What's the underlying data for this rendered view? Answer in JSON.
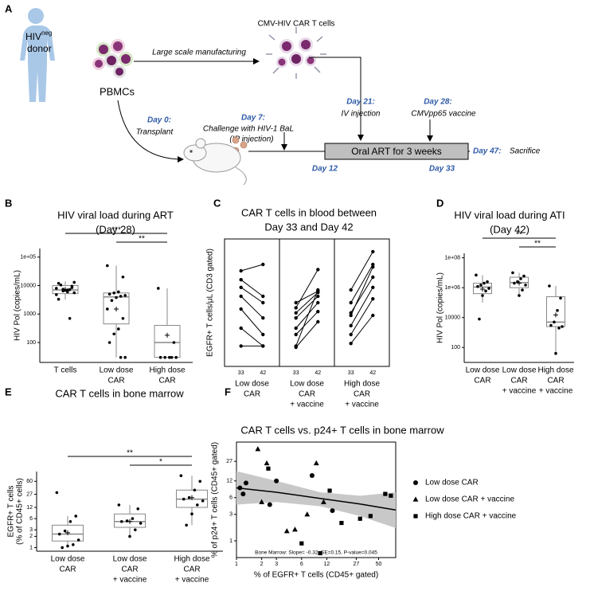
{
  "figure_a": {
    "label": "A",
    "donor": {
      "name": "HIV",
      "superscript": "neg",
      "role": "donor"
    },
    "pbmc": "PBMCs",
    "car_t": "CMV-HIV CAR T cells",
    "manufacturing": "Large scale manufacturing",
    "day0": {
      "day": "Day 0:",
      "text": "Transplant"
    },
    "day7": {
      "day": "Day 7:",
      "text": [
        "Challenge with HIV-1 BaL",
        "(IP injection)"
      ]
    },
    "day21": {
      "day": "Day 21:",
      "text": "IV injection"
    },
    "day28": {
      "day": "Day 28:",
      "text": "CMVpp65 vaccine"
    },
    "art": "Oral ART for 3 weeks",
    "day12": "Day 12",
    "day33": "Day 33",
    "day47": {
      "day": "Day 47:",
      "text": "Sacrifice"
    }
  },
  "chart_data": [
    {
      "panel": "B",
      "type": "box",
      "title": [
        "HIV viral load during ART",
        "(Day 28)"
      ],
      "y_label": "HIV Pol (copies/mL)",
      "categories": [
        [
          "T cells"
        ],
        [
          "Low dose",
          "CAR"
        ],
        [
          "High dose",
          "CAR"
        ]
      ],
      "scale": "log",
      "ylim": [
        20,
        200000
      ],
      "yticks": [
        100,
        1000,
        10000,
        {
          "value": 100000,
          "label": "1e+05"
        }
      ],
      "box_fill": "#ffffff",
      "box_stroke": "#888888",
      "point_color": "#000000",
      "boxes": [
        {
          "whisker_low": 3200,
          "q1": 5200,
          "median": 7000,
          "q3": 10000,
          "whisker_high": 14000,
          "mean": 7300,
          "points": [
            8000,
            9500,
            7000,
            6500,
            12000,
            5600,
            7200,
            6900,
            10500,
            4800,
            8500,
            6000,
            7400,
            3300,
            13000,
            700
          ]
        },
        {
          "whisker_low": 30,
          "q1": 450,
          "median": 4000,
          "q3": 5500,
          "whisker_high": 50000,
          "mean": 1500,
          "points": [
            50000,
            20000,
            6000,
            5500,
            5000,
            4500,
            4200,
            3800,
            3000,
            1500,
            700,
            300,
            200,
            100,
            30,
            30
          ]
        },
        {
          "whisker_low": 30,
          "q1": 30,
          "median": 100,
          "q3": 400,
          "whisker_high": 8000,
          "mean": 180,
          "points": [
            8000,
            100,
            30,
            30,
            30,
            30,
            30
          ]
        }
      ],
      "significance": [
        {
          "label": "***",
          "pair": [
            0,
            2
          ]
        },
        {
          "label": "**",
          "pair": [
            1,
            2
          ]
        }
      ]
    },
    {
      "panel": "C",
      "type": "paired_line",
      "title": [
        "CAR T cells in blood between",
        "Day 33 and Day 42"
      ],
      "y_label": "EGFR+ T cells/μL (CD3 gated)",
      "timepoints": [
        "33",
        "42"
      ],
      "ylim": [
        0,
        10
      ],
      "color": "#000000",
      "facets": [
        {
          "label": [
            "Low dose",
            "CAR"
          ],
          "pairs": [
            [
              7.5,
              8.0
            ],
            [
              6.8,
              5.5
            ],
            [
              6.2,
              5.0
            ],
            [
              5.5,
              3.8
            ],
            [
              4.5,
              2.5
            ],
            [
              3.0,
              1.6
            ],
            [
              1.6,
              1.6
            ]
          ]
        },
        {
          "label": [
            "Low dose",
            "CAR",
            "+ vaccine"
          ],
          "pairs": [
            [
              5.0,
              5.9
            ],
            [
              4.6,
              7.6
            ],
            [
              4.2,
              5.8
            ],
            [
              3.8,
              5.5
            ],
            [
              3.0,
              5.0
            ],
            [
              2.5,
              4.3
            ],
            [
              1.5,
              3.5
            ],
            [
              1.6,
              6.0
            ]
          ]
        },
        {
          "label": [
            "High dose",
            "CAR",
            "+ vaccine"
          ],
          "pairs": [
            [
              6.0,
              9.0
            ],
            [
              5.0,
              8.0
            ],
            [
              4.2,
              7.0
            ],
            [
              3.2,
              6.2
            ],
            [
              2.5,
              5.3
            ],
            [
              1.8,
              4.0
            ],
            [
              4.0,
              7.8
            ]
          ]
        }
      ]
    },
    {
      "panel": "D",
      "type": "box",
      "title": [
        "HIV viral load during ATI",
        "(Day 42)"
      ],
      "y_label": "HIV Pol (copies/mL)",
      "categories": [
        [
          "Low dose",
          "CAR"
        ],
        [
          "Low dose",
          "CAR",
          "+ vaccine"
        ],
        [
          "High dose",
          "CAR",
          "+ vaccine"
        ]
      ],
      "scale": "log",
      "ylim": [
        10,
        200000000
      ],
      "yticks": [
        100,
        10000,
        {
          "value": 1000000,
          "label": "1e+06"
        },
        {
          "value": 100000000,
          "label": "1e+08"
        }
      ],
      "box_fill": "#ffffff",
      "box_stroke": "#888888",
      "point_color": "#000000",
      "boxes": [
        {
          "whisker_low": 100000,
          "q1": 400000,
          "median": 1100000,
          "q3": 2000000,
          "whisker_high": 7000000,
          "mean": 800000,
          "points": [
            7000000,
            2500000,
            2000000,
            1500000,
            1200000,
            900000,
            600000,
            300000,
            8000
          ]
        },
        {
          "whisker_low": 300000,
          "q1": 1000000,
          "median": 2200000,
          "q3": 5000000,
          "whisker_high": 10000000,
          "mean": 2000000,
          "points": [
            10000000,
            6000000,
            4000000,
            2500000,
            2000000,
            1500000,
            700000,
            300000
          ]
        },
        {
          "whisker_low": 40,
          "q1": 2500,
          "median": 5000,
          "q3": 250000,
          "whisker_high": 1300000,
          "mean": 15000,
          "points": [
            1300000,
            200000,
            30000,
            5000,
            3000,
            2500,
            2000,
            40
          ]
        }
      ],
      "significance": [
        {
          "label": "**",
          "pair": [
            0,
            2
          ]
        },
        {
          "label": "**",
          "pair": [
            1,
            2
          ]
        }
      ]
    },
    {
      "panel": "E",
      "type": "box",
      "title": [
        "CAR T cells in bone marrow"
      ],
      "y_label": [
        "EGFR+ T cells",
        "(% of CD45+ cells)"
      ],
      "categories": [
        [
          "Low dose",
          "CAR"
        ],
        [
          "Low dose",
          "CAR",
          "+ vaccine"
        ],
        [
          "High dose",
          "CAR",
          "+ vaccine"
        ]
      ],
      "scale": "log",
      "ylim": [
        0.8,
        110
      ],
      "yticks": [
        1,
        2,
        3,
        6,
        12,
        27,
        60
      ],
      "box_fill": "#ffffff",
      "box_stroke": "#888888",
      "point_color": "#000000",
      "boxes": [
        {
          "whisker_low": 1,
          "q1": 1.5,
          "median": 2.3,
          "q3": 4,
          "whisker_high": 7,
          "mean": 2.5,
          "points": [
            30,
            7,
            5,
            2.8,
            2.3,
            1.6,
            1.2,
            1.1,
            1
          ]
        },
        {
          "whisker_low": 2,
          "q1": 3.5,
          "median": 5,
          "q3": 8,
          "whisker_high": 14,
          "mean": 5,
          "points": [
            14,
            11,
            6,
            5.2,
            5,
            4.5,
            3,
            2
          ]
        },
        {
          "whisker_low": 4,
          "q1": 12,
          "median": 20,
          "q3": 35,
          "whisker_high": 85,
          "mean": 22,
          "points": [
            85,
            60,
            35,
            22,
            20,
            18,
            14,
            8,
            4
          ]
        }
      ],
      "significance": [
        {
          "label": "**",
          "pair": [
            0,
            2
          ]
        },
        {
          "label": "*",
          "pair": [
            1,
            2
          ]
        }
      ]
    },
    {
      "panel": "F",
      "type": "scatter",
      "title": "CAR T cells vs. p24+ T cells in bone marrow",
      "x_label": "% of EGFR+ T cells (CD45+ gated)",
      "y_label": "% of p24+ T cells (CD45+ gated)",
      "xscale": "log",
      "yscale": "log",
      "xlim": [
        1,
        80
      ],
      "ylim": [
        0.5,
        60
      ],
      "xticks": [
        1,
        2,
        3,
        6,
        12,
        27,
        50
      ],
      "yticks": [
        1,
        3,
        6,
        12,
        27
      ],
      "band_color": "#c8c8c8",
      "line_color": "#000000",
      "series": [
        {
          "name": "Low dose CAR",
          "marker": "circle",
          "color": "#000000",
          "x": [
            1.1,
            1.3,
            2.5,
            3,
            8,
            14,
            1.2
          ],
          "y": [
            9,
            11,
            4.5,
            12,
            15,
            3.5,
            7
          ]
        },
        {
          "name": "Low dose CAR + vaccine",
          "marker": "triangle",
          "color": "#000000",
          "x": [
            1.8,
            2.3,
            4,
            5,
            9,
            11,
            2,
            7
          ],
          "y": [
            45,
            25,
            1.5,
            1.6,
            25,
            5,
            5,
            3
          ]
        },
        {
          "name": "High dose CAR + vaccine",
          "marker": "square",
          "color": "#000000",
          "x": [
            2.4,
            6,
            10,
            13,
            18,
            30,
            40,
            60,
            70
          ],
          "y": [
            20,
            0.9,
            0.6,
            8,
            2.1,
            2.5,
            2.8,
            7,
            6.5
          ]
        }
      ],
      "fit": {
        "x": [
          1,
          3,
          10,
          30,
          80
        ],
        "y": [
          9,
          7.5,
          5.8,
          4.6,
          3.6
        ],
        "lower": [
          4.5,
          5,
          4.2,
          2.8,
          1.7
        ],
        "upper": [
          18,
          12,
          7.5,
          6.5,
          7.5
        ]
      },
      "annotation": "Bone Marrow: Slope= -0.32, SE=0.15, P-value=0.045"
    }
  ]
}
